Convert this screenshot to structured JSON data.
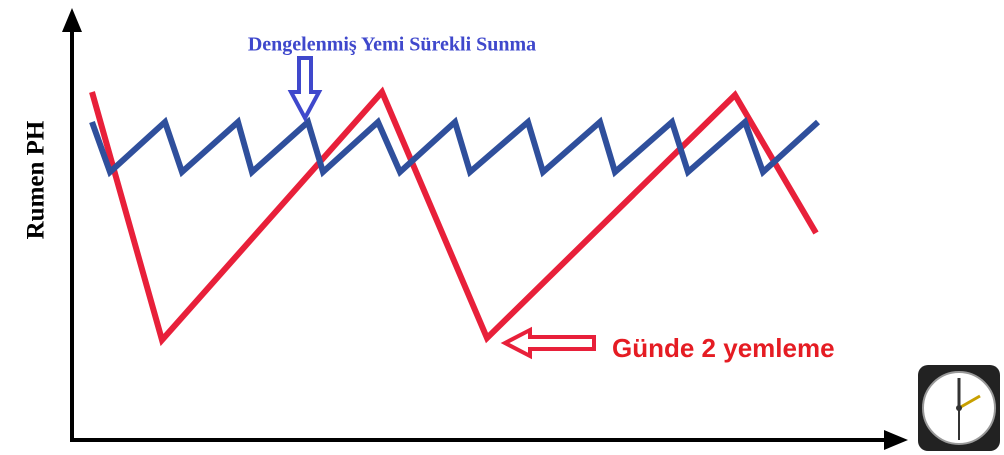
{
  "y_axis_label": "Rumen PH",
  "annotations": {
    "continuous": "Dengelenmiş Yemi Sürekli Sunma",
    "twice_daily": "Günde 2 yemleme"
  }
}
